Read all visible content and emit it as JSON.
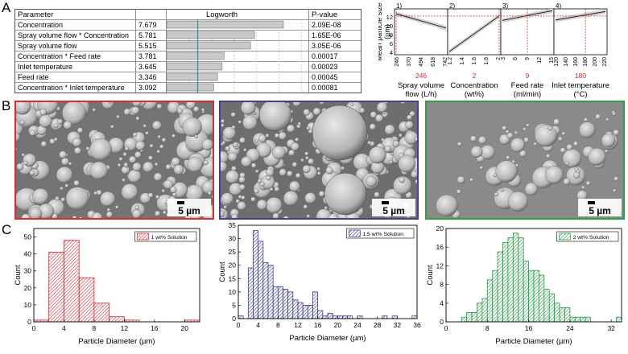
{
  "panel_labels": [
    "A",
    "B",
    "C"
  ],
  "table": {
    "headers": [
      "Parameter",
      "Logworth",
      "P-value"
    ],
    "rows": [
      {
        "parameter": "Concentration",
        "logworth": "7.679",
        "pvalue": "2.09E-08",
        "value": 7.679
      },
      {
        "parameter": "Spray volume flow * Concentration",
        "logworth": "5.781",
        "pvalue": "1.65E-06",
        "value": 5.781
      },
      {
        "parameter": "Spray volume flow",
        "logworth": "5.515",
        "pvalue": "3.05E-06",
        "value": 5.515
      },
      {
        "parameter": "Concentration * Feed rate",
        "logworth": "3.781",
        "pvalue": "0.00017",
        "value": 3.781
      },
      {
        "parameter": "Inlet temperature",
        "logworth": "3.645",
        "pvalue": "0.00023",
        "value": 3.645
      },
      {
        "parameter": "Feed rate",
        "logworth": "3.346",
        "pvalue": "0.00045",
        "value": 3.346
      },
      {
        "parameter": "Concentration * Inlet temperature",
        "logworth": "3.092",
        "pvalue": "0.00081",
        "value": 3.092
      }
    ]
  },
  "profiler": {
    "ylabel": "Mean particle size (µm)",
    "yticks": [
      "4",
      "6",
      "8",
      "10",
      "12"
    ],
    "ylim": [
      3.5,
      13.8
    ],
    "reference_y": 12.2,
    "panels": [
      {
        "num": "1)",
        "ticks": [
          "246",
          "370",
          "494",
          "618",
          "742"
        ],
        "xlim": [
          246,
          742
        ],
        "line": [
          [
            246,
            12.7
          ],
          [
            742,
            9.5
          ]
        ],
        "ref_x": 246,
        "current": "246",
        "label1": "Spray volume",
        "label2": "flow (L/h)"
      },
      {
        "num": "2)",
        "ticks": [
          "1.2",
          "1.4",
          "1.6",
          "1.8",
          "2"
        ],
        "xlim": [
          1.0,
          2.0
        ],
        "line": [
          [
            1.0,
            4.2
          ],
          [
            2.0,
            12.2
          ]
        ],
        "ref_x": 2.0,
        "current": "2",
        "label1": "Concentration",
        "label2": "(wt%)"
      },
      {
        "num": "3)",
        "ticks": [
          "3",
          "6",
          "9",
          "12",
          "15"
        ],
        "xlim": [
          3,
          15
        ],
        "line": [
          [
            3,
            11.2
          ],
          [
            15,
            13.4
          ]
        ],
        "ref_x": 9,
        "current": "9",
        "label1": "Feed rate",
        "label2": "(ml/min)"
      },
      {
        "num": "4)",
        "ticks": [
          "120",
          "140",
          "160",
          "180",
          "200",
          "220"
        ],
        "xlim": [
          120,
          220
        ],
        "line": [
          [
            120,
            11.3
          ],
          [
            220,
            13.2
          ]
        ],
        "ref_x": 180,
        "current": "180",
        "label1": "Inlet temperature",
        "label2": "(°C)"
      }
    ]
  },
  "sem_images": [
    {
      "scale": "5 µm",
      "border": "#e0282e"
    },
    {
      "scale": "5 µm",
      "border": "#3f3f94"
    },
    {
      "scale": "5 µm",
      "border": "#2e9e46"
    }
  ],
  "chart_data": [
    {
      "type": "bar",
      "legend": "1 wt% Solution",
      "color": "#d4232c",
      "xlabel": "Particle Diameter (µm)",
      "ylabel": "Count",
      "xlim": [
        0,
        22
      ],
      "ylim": [
        0,
        55
      ],
      "xticks": [
        0,
        4,
        8,
        12,
        16,
        20
      ],
      "yticks": [
        0,
        10,
        20,
        30,
        40,
        50
      ],
      "bin_width": 2,
      "bins": [
        0,
        2,
        4,
        6,
        8,
        10,
        12,
        20
      ],
      "values": [
        1,
        41,
        48,
        26,
        11,
        3,
        1,
        1
      ]
    },
    {
      "type": "bar",
      "legend": "1.5 wt% Solution",
      "color": "#3a3a8c",
      "xlabel": "Particle Diameter (µm)",
      "ylabel": "Count",
      "xlim": [
        0,
        36
      ],
      "ylim": [
        0,
        35
      ],
      "xticks": [
        0,
        4,
        8,
        12,
        16,
        20,
        24,
        28,
        32,
        36
      ],
      "yticks": [
        0,
        5,
        10,
        15,
        20,
        25,
        30,
        35
      ],
      "bin_width": 1,
      "bins": [
        0,
        2,
        3,
        4,
        5,
        6,
        7,
        8,
        9,
        10,
        11,
        12,
        13,
        14,
        15,
        16,
        17,
        18,
        19,
        20,
        21,
        22,
        24,
        29,
        31,
        35
      ],
      "values": [
        1,
        19,
        33,
        29,
        21,
        20,
        12,
        12,
        11,
        10,
        7,
        6,
        5,
        5,
        10,
        3,
        1,
        2,
        1,
        1,
        1,
        1,
        1,
        1,
        1,
        1
      ]
    },
    {
      "type": "bar",
      "legend": "2 wt% Solution",
      "color": "#249a45",
      "xlabel": "Particle Diameter (µm)",
      "ylabel": "Count",
      "xlim": [
        0,
        34
      ],
      "ylim": [
        0,
        20
      ],
      "xticks": [
        0,
        8,
        16,
        24,
        32
      ],
      "yticks": [
        0,
        4,
        8,
        12,
        16,
        20
      ],
      "bin_width": 1,
      "bins": [
        3,
        4,
        5,
        6,
        7,
        8,
        9,
        10,
        11,
        12,
        13,
        14,
        15,
        16,
        17,
        18,
        19,
        20,
        21,
        22,
        23,
        24,
        25,
        26,
        27,
        33
      ],
      "values": [
        1,
        2,
        2,
        4,
        5,
        9,
        11,
        15,
        17,
        18,
        19,
        18,
        13,
        11,
        11,
        10,
        7,
        6,
        4,
        3,
        3,
        1,
        1,
        1,
        1,
        1
      ]
    }
  ]
}
